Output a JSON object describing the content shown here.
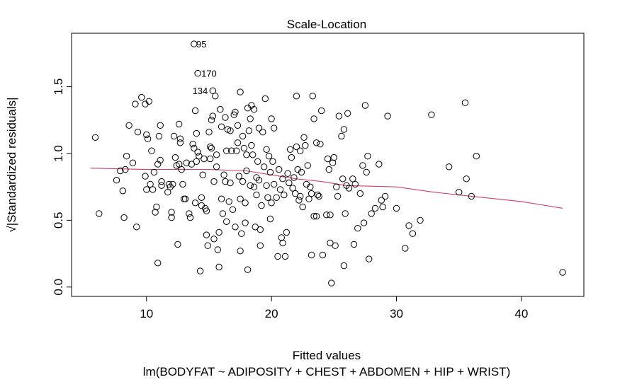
{
  "chart_data": {
    "type": "scatter",
    "title": "Scale-Location",
    "xlabel": "Fitted values",
    "subtitle": "lm(BODYFAT ~ ADIPOSITY + CHEST + ABDOMEN + HIP + WRIST)",
    "ylabel": "√|Standardized residuals|",
    "xlim": [
      4.0,
      45.0
    ],
    "ylim": [
      -0.07,
      1.9
    ],
    "xticks": [
      "10",
      "20",
      "30",
      "40"
    ],
    "yticks": [
      "0.0",
      "0.5",
      "1.0",
      "1.5"
    ],
    "grid": false,
    "marker": "open-circle",
    "colors": {
      "points": "#000000",
      "smoother": "#d0406a"
    },
    "annotations": [
      {
        "label": "95",
        "x": 13.7,
        "y": 1.82
      },
      {
        "label": "170",
        "x": 14.1,
        "y": 1.6
      },
      {
        "label": "134",
        "x": 15.3,
        "y": 1.47
      }
    ],
    "smoother": [
      [
        5.5,
        0.89
      ],
      [
        10.0,
        0.88
      ],
      [
        15.0,
        0.88
      ],
      [
        18.0,
        0.87
      ],
      [
        20.0,
        0.84
      ],
      [
        22.0,
        0.81
      ],
      [
        24.0,
        0.79
      ],
      [
        26.0,
        0.76
      ],
      [
        30.0,
        0.75
      ],
      [
        33.0,
        0.71
      ],
      [
        37.0,
        0.67
      ],
      [
        40.0,
        0.64
      ],
      [
        43.3,
        0.59
      ]
    ],
    "points": [
      [
        5.9,
        1.12
      ],
      [
        6.2,
        0.55
      ],
      [
        7.6,
        0.8
      ],
      [
        7.9,
        0.87
      ],
      [
        8.1,
        0.72
      ],
      [
        8.2,
        0.52
      ],
      [
        8.3,
        0.88
      ],
      [
        8.4,
        0.98
      ],
      [
        8.6,
        1.21
      ],
      [
        8.9,
        0.93
      ],
      [
        9.1,
        1.37
      ],
      [
        9.2,
        0.45
      ],
      [
        9.3,
        1.16
      ],
      [
        9.6,
        1.42
      ],
      [
        9.9,
        1.37
      ],
      [
        9.9,
        0.83
      ],
      [
        10.0,
        1.14
      ],
      [
        10.0,
        0.73
      ],
      [
        10.1,
        1.11
      ],
      [
        10.2,
        1.39
      ],
      [
        10.3,
        0.77
      ],
      [
        10.4,
        1.02
      ],
      [
        10.5,
        0.73
      ],
      [
        10.6,
        0.86
      ],
      [
        10.7,
        0.56
      ],
      [
        10.8,
        0.6
      ],
      [
        10.9,
        0.92
      ],
      [
        10.9,
        0.18
      ],
      [
        11.0,
        1.13
      ],
      [
        11.1,
        1.21
      ],
      [
        11.1,
        0.95
      ],
      [
        11.2,
        0.79
      ],
      [
        11.2,
        0.76
      ],
      [
        11.7,
        0.71
      ],
      [
        11.8,
        0.77
      ],
      [
        11.9,
        0.75
      ],
      [
        12.0,
        0.52
      ],
      [
        12.0,
        0.56
      ],
      [
        12.1,
        0.77
      ],
      [
        12.2,
        1.13
      ],
      [
        12.3,
        0.97
      ],
      [
        12.4,
        0.91
      ],
      [
        12.5,
        0.32
      ],
      [
        12.6,
        1.22
      ],
      [
        12.6,
        0.92
      ],
      [
        12.7,
        1.11
      ],
      [
        12.7,
        1.08
      ],
      [
        12.8,
        0.88
      ],
      [
        12.9,
        0.77
      ],
      [
        13.0,
        0.66
      ],
      [
        13.1,
        0.66
      ],
      [
        13.2,
        0.93
      ],
      [
        13.4,
        0.55
      ],
      [
        13.5,
        0.52
      ],
      [
        13.6,
        0.92
      ],
      [
        13.7,
        1.07
      ],
      [
        13.8,
        1.04
      ],
      [
        13.8,
        1.82
      ],
      [
        13.9,
        1.32
      ],
      [
        13.9,
        0.63
      ],
      [
        14.0,
        1.15
      ],
      [
        14.0,
        0.94
      ],
      [
        14.1,
        1.6
      ],
      [
        14.1,
        1.01
      ],
      [
        14.2,
        0.98
      ],
      [
        14.3,
        0.12
      ],
      [
        14.4,
        0.67
      ],
      [
        14.4,
        0.61
      ],
      [
        14.5,
        0.84
      ],
      [
        14.6,
        0.96
      ],
      [
        14.7,
        0.59
      ],
      [
        14.8,
        0.57
      ],
      [
        14.8,
        0.39
      ],
      [
        14.9,
        0.31
      ],
      [
        15.0,
        1.16
      ],
      [
        15.1,
        0.96
      ],
      [
        15.1,
        1.05
      ],
      [
        15.2,
        1.04
      ],
      [
        15.2,
        1.25
      ],
      [
        15.3,
        1.47
      ],
      [
        15.3,
        1.28
      ],
      [
        15.4,
        0.79
      ],
      [
        15.4,
        0.36
      ],
      [
        15.5,
        1.43
      ],
      [
        15.6,
        0.99
      ],
      [
        15.6,
        0.9
      ],
      [
        15.7,
        0.28
      ],
      [
        15.8,
        0.15
      ],
      [
        15.8,
        0.41
      ],
      [
        15.9,
        1.33
      ],
      [
        16.0,
        1.2
      ],
      [
        16.0,
        0.66
      ],
      [
        16.1,
        0.55
      ],
      [
        16.2,
        0.84
      ],
      [
        16.3,
        1.27
      ],
      [
        16.3,
        0.79
      ],
      [
        16.4,
        1.02
      ],
      [
        16.4,
        0.49
      ],
      [
        16.5,
        1.18
      ],
      [
        16.6,
        0.64
      ],
      [
        16.7,
        1.17
      ],
      [
        16.7,
        0.78
      ],
      [
        16.8,
        1.02
      ],
      [
        16.9,
        0.58
      ],
      [
        17.0,
        1.29
      ],
      [
        17.1,
        1.31
      ],
      [
        17.1,
        0.45
      ],
      [
        17.2,
        1.02
      ],
      [
        17.3,
        1.21
      ],
      [
        17.3,
        1.08
      ],
      [
        17.4,
        0.83
      ],
      [
        17.5,
        0.66
      ],
      [
        17.5,
        1.46
      ],
      [
        17.5,
        0.27
      ],
      [
        17.6,
        0.4
      ],
      [
        17.7,
        1.13
      ],
      [
        17.7,
        0.79
      ],
      [
        17.8,
        1.04
      ],
      [
        17.9,
        0.63
      ],
      [
        17.9,
        0.48
      ],
      [
        18.0,
        0.99
      ],
      [
        18.0,
        0.87
      ],
      [
        18.1,
        1.34
      ],
      [
        18.1,
        0.13
      ],
      [
        18.2,
        1.17
      ],
      [
        18.3,
        0.76
      ],
      [
        18.3,
        1.26
      ],
      [
        18.4,
        1.36
      ],
      [
        18.4,
        1.06
      ],
      [
        18.5,
        0.99
      ],
      [
        18.6,
        0.75
      ],
      [
        18.6,
        1.33
      ],
      [
        18.7,
        0.45
      ],
      [
        18.8,
        0.69
      ],
      [
        18.8,
        0.82
      ],
      [
        18.9,
        0.94
      ],
      [
        19.0,
        1.19
      ],
      [
        19.0,
        0.8
      ],
      [
        19.1,
        0.43
      ],
      [
        19.1,
        0.31
      ],
      [
        19.2,
        0.61
      ],
      [
        19.3,
        1.16
      ],
      [
        19.4,
        0.9
      ],
      [
        19.5,
        1.41
      ],
      [
        19.6,
        1.03
      ],
      [
        19.6,
        0.76
      ],
      [
        19.7,
        0.67
      ],
      [
        19.8,
        0.98
      ],
      [
        19.9,
        0.86
      ],
      [
        19.9,
        0.51
      ],
      [
        20.0,
        1.26
      ],
      [
        20.0,
        0.63
      ],
      [
        20.1,
        0.94
      ],
      [
        20.2,
        1.19
      ],
      [
        20.2,
        0.77
      ],
      [
        20.4,
        0.67
      ],
      [
        20.5,
        0.23
      ],
      [
        20.6,
        0.88
      ],
      [
        20.7,
        0.73
      ],
      [
        20.8,
        0.37
      ],
      [
        20.9,
        0.81
      ],
      [
        20.9,
        0.33
      ],
      [
        21.0,
        0.69
      ],
      [
        21.1,
        0.23
      ],
      [
        21.2,
        0.41
      ],
      [
        21.3,
        0.85
      ],
      [
        21.4,
        0.78
      ],
      [
        21.5,
        1.03
      ],
      [
        21.6,
        0.97
      ],
      [
        21.7,
        0.74
      ],
      [
        21.8,
        0.82
      ],
      [
        21.9,
        0.7
      ],
      [
        22.0,
        1.05
      ],
      [
        22.0,
        1.43
      ],
      [
        22.1,
        0.88
      ],
      [
        22.2,
        0.65
      ],
      [
        22.3,
        1.02
      ],
      [
        22.3,
        0.68
      ],
      [
        22.4,
        0.86
      ],
      [
        22.5,
        0.6
      ],
      [
        22.6,
        1.12
      ],
      [
        22.7,
        1.06
      ],
      [
        22.8,
        0.77
      ],
      [
        22.9,
        0.91
      ],
      [
        23.0,
        0.66
      ],
      [
        23.1,
        0.75
      ],
      [
        23.2,
        0.7
      ],
      [
        23.2,
        0.24
      ],
      [
        23.3,
        1.43
      ],
      [
        23.4,
        1.26
      ],
      [
        23.4,
        0.53
      ],
      [
        23.6,
        1.08
      ],
      [
        23.6,
        0.53
      ],
      [
        23.7,
        0.69
      ],
      [
        23.8,
        0.68
      ],
      [
        23.9,
        1.07
      ],
      [
        24.0,
        1.32
      ],
      [
        24.1,
        0.24
      ],
      [
        24.4,
        0.54
      ],
      [
        24.5,
        0.96
      ],
      [
        24.6,
        0.88
      ],
      [
        24.7,
        0.54
      ],
      [
        24.7,
        0.33
      ],
      [
        24.8,
        0.03
      ],
      [
        24.9,
        0.93
      ],
      [
        25.0,
        0.97
      ],
      [
        25.1,
        0.31
      ],
      [
        25.2,
        0.75
      ],
      [
        25.3,
        0.68
      ],
      [
        25.4,
        1.28
      ],
      [
        25.6,
        1.13
      ],
      [
        25.7,
        0.81
      ],
      [
        25.8,
        1.18
      ],
      [
        25.8,
        0.16
      ],
      [
        25.9,
        0.55
      ],
      [
        26.0,
        0.76
      ],
      [
        26.1,
        1.3
      ],
      [
        26.2,
        0.74
      ],
      [
        26.5,
        0.81
      ],
      [
        26.6,
        0.32
      ],
      [
        26.7,
        0.77
      ],
      [
        26.9,
        0.44
      ],
      [
        27.1,
        0.7
      ],
      [
        27.3,
        0.91
      ],
      [
        27.4,
        0.48
      ],
      [
        27.5,
        1.36
      ],
      [
        27.6,
        0.86
      ],
      [
        27.7,
        0.98
      ],
      [
        27.8,
        0.21
      ],
      [
        28.0,
        0.55
      ],
      [
        28.3,
        0.59
      ],
      [
        28.6,
        0.92
      ],
      [
        28.8,
        0.65
      ],
      [
        28.9,
        0.6
      ],
      [
        29.1,
        0.68
      ],
      [
        29.3,
        1.28
      ],
      [
        30.0,
        0.59
      ],
      [
        30.7,
        0.29
      ],
      [
        31.0,
        0.46
      ],
      [
        31.3,
        0.4
      ],
      [
        31.9,
        0.5
      ],
      [
        32.8,
        1.29
      ],
      [
        34.2,
        0.9
      ],
      [
        35.0,
        0.71
      ],
      [
        35.5,
        1.38
      ],
      [
        35.6,
        0.81
      ],
      [
        36.0,
        0.68
      ],
      [
        36.4,
        0.98
      ],
      [
        43.3,
        0.11
      ]
    ]
  }
}
